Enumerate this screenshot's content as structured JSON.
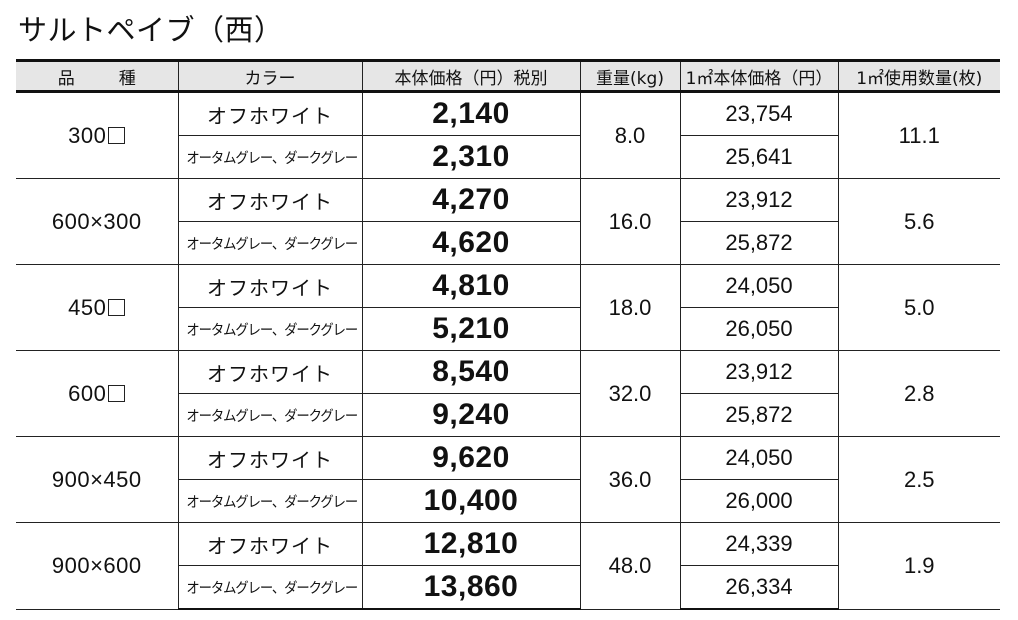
{
  "title": "サルトペイブ（西）",
  "table": {
    "headers": {
      "hinshu_a": "品",
      "hinshu_b": "種",
      "color": "カラー",
      "price": "本体価格（円）税別",
      "weight": "重量(kg)",
      "per_m2_price": "1㎡本体価格（円）",
      "per_m2_count": "1㎡使用数量(枚)"
    },
    "rows": [
      {
        "size": "300",
        "square": true,
        "weight": "8.0",
        "count": "11.1",
        "variants": [
          {
            "color": "オフホワイト",
            "price": "2,140",
            "per_m2": "23,754"
          },
          {
            "color": "オータムグレー、ダークグレー",
            "price": "2,310",
            "per_m2": "25,641"
          }
        ]
      },
      {
        "size": "600×300",
        "square": false,
        "weight": "16.0",
        "count": "5.6",
        "variants": [
          {
            "color": "オフホワイト",
            "price": "4,270",
            "per_m2": "23,912"
          },
          {
            "color": "オータムグレー、ダークグレー",
            "price": "4,620",
            "per_m2": "25,872"
          }
        ]
      },
      {
        "size": "450",
        "square": true,
        "weight": "18.0",
        "count": "5.0",
        "variants": [
          {
            "color": "オフホワイト",
            "price": "4,810",
            "per_m2": "24,050"
          },
          {
            "color": "オータムグレー、ダークグレー",
            "price": "5,210",
            "per_m2": "26,050"
          }
        ]
      },
      {
        "size": "600",
        "square": true,
        "weight": "32.0",
        "count": "2.8",
        "variants": [
          {
            "color": "オフホワイト",
            "price": "8,540",
            "per_m2": "23,912"
          },
          {
            "color": "オータムグレー、ダークグレー",
            "price": "9,240",
            "per_m2": "25,872"
          }
        ]
      },
      {
        "size": "900×450",
        "square": false,
        "weight": "36.0",
        "count": "2.5",
        "variants": [
          {
            "color": "オフホワイト",
            "price": "9,620",
            "per_m2": "24,050"
          },
          {
            "color": "オータムグレー、ダークグレー",
            "price": "10,400",
            "per_m2": "26,000"
          }
        ]
      },
      {
        "size": "900×600",
        "square": false,
        "weight": "48.0",
        "count": "1.9",
        "variants": [
          {
            "color": "オフホワイト",
            "price": "12,810",
            "per_m2": "24,339"
          },
          {
            "color": "オータムグレー、ダークグレー",
            "price": "13,860",
            "per_m2": "26,334"
          }
        ]
      }
    ]
  }
}
